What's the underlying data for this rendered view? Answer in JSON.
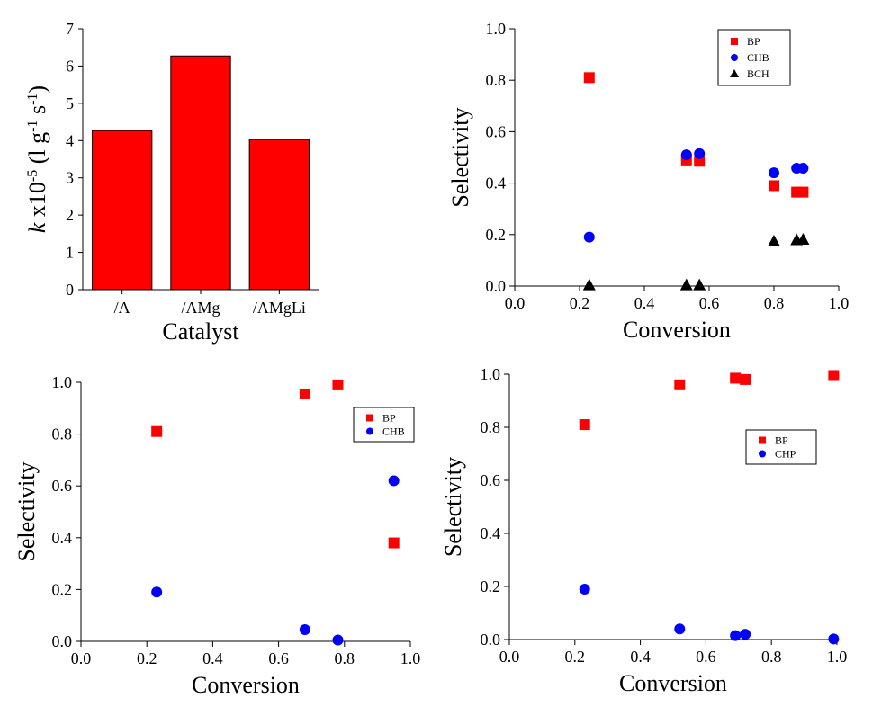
{
  "chart_data": [
    {
      "type": "bar",
      "categories": [
        "/A",
        "/AMg",
        "/AMgLi"
      ],
      "values": [
        4.27,
        6.27,
        4.03
      ],
      "xlabel": "Catalyst",
      "ylabel": {
        "k": "k",
        "x10": " x10",
        "exp": "-5",
        "open": " (l g",
        "exp1": "-1",
        "s": " s",
        "exp2": "-1",
        "close": ")"
      },
      "ylim": [
        0,
        7
      ],
      "yticks": [
        "0",
        "1",
        "2",
        "3",
        "4",
        "5",
        "6",
        "7"
      ],
      "bar_color": "#ff0000"
    },
    {
      "type": "scatter",
      "xlabel": "Conversion",
      "ylabel": "Selectivity",
      "xlim": [
        0,
        1
      ],
      "ylim": [
        0,
        1
      ],
      "xticks": [
        "0.0",
        "0.2",
        "0.4",
        "0.6",
        "0.8",
        "1.0"
      ],
      "yticks": [
        "0.0",
        "0.2",
        "0.4",
        "0.6",
        "0.8",
        "1.0"
      ],
      "legend_position": "top-right",
      "series": [
        {
          "name": "BP",
          "marker": "square",
          "color": "#ff0000",
          "x": [
            0.23,
            0.53,
            0.57,
            0.8,
            0.87,
            0.89
          ],
          "y": [
            0.81,
            0.49,
            0.485,
            0.39,
            0.365,
            0.365
          ]
        },
        {
          "name": "CHB",
          "marker": "circle",
          "color": "#0000ff",
          "x": [
            0.23,
            0.53,
            0.57,
            0.8,
            0.87,
            0.89
          ],
          "y": [
            0.19,
            0.51,
            0.515,
            0.44,
            0.458,
            0.458
          ]
        },
        {
          "name": "BCH",
          "marker": "triangle",
          "color": "#000000",
          "x": [
            0.23,
            0.53,
            0.57,
            0.8,
            0.87,
            0.89
          ],
          "y": [
            0.005,
            0.005,
            0.005,
            0.175,
            0.18,
            0.182
          ]
        }
      ]
    },
    {
      "type": "scatter",
      "xlabel": "Conversion",
      "ylabel": "Selectivity",
      "xlim": [
        0,
        1
      ],
      "ylim": [
        0,
        1
      ],
      "xticks": [
        "0.0",
        "0.2",
        "0.4",
        "0.6",
        "0.8",
        "1.0"
      ],
      "yticks": [
        "0.0",
        "0.2",
        "0.4",
        "0.6",
        "0.8",
        "1.0"
      ],
      "legend_position": "top-right",
      "series": [
        {
          "name": "BP",
          "marker": "square",
          "color": "#ff0000",
          "x": [
            0.23,
            0.68,
            0.78,
            0.95
          ],
          "y": [
            0.81,
            0.955,
            0.99,
            0.38
          ]
        },
        {
          "name": "CHB",
          "marker": "circle",
          "color": "#0000ff",
          "x": [
            0.23,
            0.68,
            0.78,
            0.95
          ],
          "y": [
            0.19,
            0.045,
            0.005,
            0.62
          ]
        }
      ]
    },
    {
      "type": "scatter",
      "xlabel": "Conversion",
      "ylabel": "Selectivity",
      "xlim": [
        0,
        1
      ],
      "ylim": [
        0,
        1
      ],
      "xticks": [
        "0.0",
        "0.2",
        "0.4",
        "0.6",
        "0.8",
        "1.0"
      ],
      "yticks": [
        "0.0",
        "0.2",
        "0.4",
        "0.6",
        "0.8",
        "1.0"
      ],
      "legend_position": "top-right",
      "series": [
        {
          "name": "BP",
          "marker": "square",
          "color": "#ff0000",
          "x": [
            0.23,
            0.52,
            0.69,
            0.72,
            0.99
          ],
          "y": [
            0.81,
            0.96,
            0.985,
            0.98,
            0.995
          ]
        },
        {
          "name": "CHP",
          "marker": "circle",
          "color": "#0000ff",
          "x": [
            0.23,
            0.52,
            0.69,
            0.72,
            0.99
          ],
          "y": [
            0.19,
            0.04,
            0.015,
            0.02,
            0.002
          ]
        }
      ]
    }
  ]
}
